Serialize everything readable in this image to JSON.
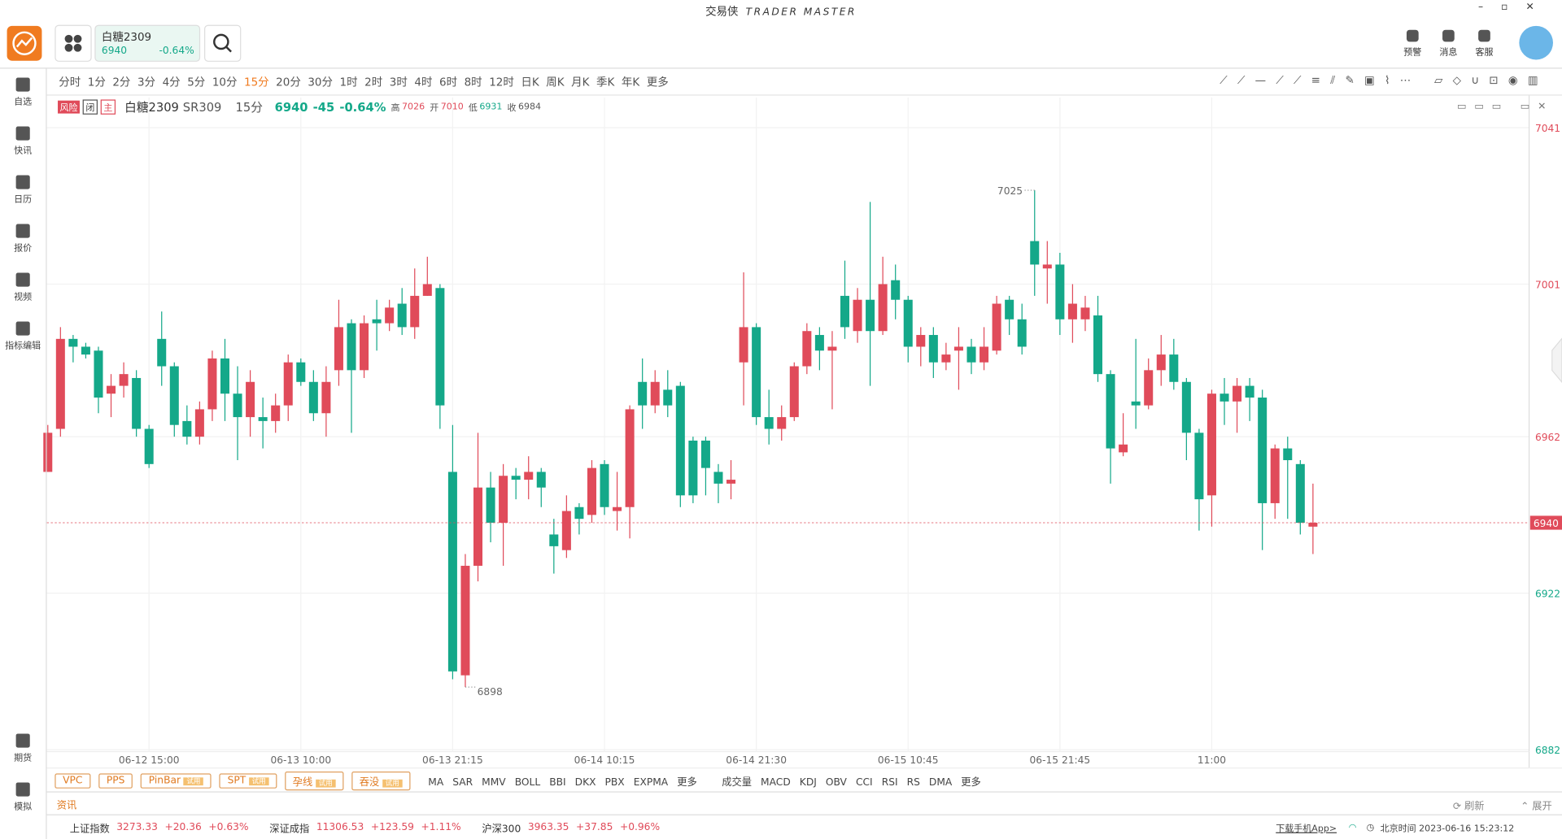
{
  "app": {
    "title": "交易侠",
    "subtitle": "TRADER MASTER"
  },
  "watch_card": {
    "name": "白糖2309",
    "price": "6940",
    "change": "-0.64%"
  },
  "top_icons": [
    "预警",
    "消息",
    "客服"
  ],
  "sidebar": [
    "自选",
    "快讯",
    "日历",
    "报价",
    "视频",
    "指标编辑"
  ],
  "sidebar_bottom": [
    "期货",
    "模拟"
  ],
  "periods": [
    "分时",
    "1分",
    "2分",
    "3分",
    "4分",
    "5分",
    "10分",
    "15分",
    "20分",
    "30分",
    "1时",
    "2时",
    "3时",
    "4时",
    "6时",
    "8时",
    "12时",
    "日K",
    "周K",
    "月K",
    "季K",
    "年K",
    "更多"
  ],
  "active_period": "15分",
  "quote": {
    "tags": [
      "风险",
      "闭",
      "主"
    ],
    "name": "白糖2309",
    "code": "SR309",
    "period": "15分",
    "last": "6940",
    "change": "-45",
    "pct": "-0.64%",
    "high_label": "高",
    "high": "7026",
    "open_label": "开",
    "open": "7010",
    "low_label": "低",
    "low": "6931",
    "close_label": "收",
    "close": "6984"
  },
  "chart_data": {
    "type": "candlestick",
    "categories": [
      null,
      null,
      null,
      null,
      null,
      null,
      null,
      null,
      "06-12 15:00",
      null,
      null,
      null,
      null,
      null,
      null,
      null,
      null,
      null,
      null,
      null,
      "06-13 10:00",
      null,
      null,
      null,
      null,
      null,
      null,
      null,
      null,
      null,
      null,
      null,
      "06-13 21:15",
      null,
      null,
      null,
      null,
      null,
      null,
      null,
      null,
      null,
      null,
      null,
      "06-14 10:15",
      null,
      null,
      null,
      null,
      null,
      null,
      null,
      null,
      null,
      null,
      null,
      "06-14 21:30",
      null,
      null,
      null,
      null,
      null,
      null,
      null,
      null,
      null,
      null,
      null,
      "06-15 10:45",
      null,
      null,
      null,
      null,
      null,
      null,
      null,
      null,
      null,
      null,
      null,
      "06-15 21:45",
      null,
      null,
      null,
      null,
      null,
      null,
      null,
      null,
      null,
      null,
      null,
      "11:00",
      null,
      null,
      null,
      null,
      null,
      null,
      null,
      null
    ],
    "candles": [
      {
        "o": 6953,
        "h": 6965,
        "l": 6953,
        "c": 6963
      },
      {
        "o": 6964,
        "h": 6990,
        "l": 6962,
        "c": 6987
      },
      {
        "o": 6987,
        "h": 6988,
        "l": 6981,
        "c": 6985
      },
      {
        "o": 6985,
        "h": 6986,
        "l": 6982,
        "c": 6983
      },
      {
        "o": 6984,
        "h": 6985,
        "l": 6968,
        "c": 6972
      },
      {
        "o": 6973,
        "h": 6978,
        "l": 6967,
        "c": 6975
      },
      {
        "o": 6975,
        "h": 6981,
        "l": 6972,
        "c": 6978
      },
      {
        "o": 6977,
        "h": 6979,
        "l": 6962,
        "c": 6964
      },
      {
        "o": 6964,
        "h": 6965,
        "l": 6954,
        "c": 6955
      },
      {
        "o": 6987,
        "h": 6994,
        "l": 6975,
        "c": 6980
      },
      {
        "o": 6980,
        "h": 6981,
        "l": 6962,
        "c": 6965
      },
      {
        "o": 6966,
        "h": 6970,
        "l": 6960,
        "c": 6962
      },
      {
        "o": 6962,
        "h": 6971,
        "l": 6960,
        "c": 6969
      },
      {
        "o": 6969,
        "h": 6984,
        "l": 6966,
        "c": 6982
      },
      {
        "o": 6982,
        "h": 6987,
        "l": 6966,
        "c": 6973
      },
      {
        "o": 6973,
        "h": 6980,
        "l": 6956,
        "c": 6967
      },
      {
        "o": 6967,
        "h": 6979,
        "l": 6962,
        "c": 6976
      },
      {
        "o": 6967,
        "h": 6972,
        "l": 6959,
        "c": 6966
      },
      {
        "o": 6966,
        "h": 6973,
        "l": 6963,
        "c": 6970
      },
      {
        "o": 6970,
        "h": 6983,
        "l": 6966,
        "c": 6981
      },
      {
        "o": 6981,
        "h": 6982,
        "l": 6975,
        "c": 6976
      },
      {
        "o": 6976,
        "h": 6979,
        "l": 6966,
        "c": 6968
      },
      {
        "o": 6968,
        "h": 6980,
        "l": 6962,
        "c": 6976
      },
      {
        "o": 6979,
        "h": 6997,
        "l": 6975,
        "c": 6990
      },
      {
        "o": 6991,
        "h": 6992,
        "l": 6963,
        "c": 6979
      },
      {
        "o": 6979,
        "h": 6993,
        "l": 6977,
        "c": 6991
      },
      {
        "o": 6992,
        "h": 6997,
        "l": 6984,
        "c": 6991
      },
      {
        "o": 6991,
        "h": 6997,
        "l": 6989,
        "c": 6995
      },
      {
        "o": 6996,
        "h": 7000,
        "l": 6988,
        "c": 6990
      },
      {
        "o": 6990,
        "h": 7005,
        "l": 6987,
        "c": 6998
      },
      {
        "o": 6998,
        "h": 7008,
        "l": 6998,
        "c": 7001
      },
      {
        "o": 7000,
        "h": 7001,
        "l": 6964,
        "c": 6970
      },
      {
        "o": 6953,
        "h": 6965,
        "l": 6900,
        "c": 6902
      },
      {
        "o": 6901,
        "h": 6932,
        "l": 6898,
        "c": 6929
      },
      {
        "o": 6929,
        "h": 6963,
        "l": 6925,
        "c": 6949
      },
      {
        "o": 6949,
        "h": 6953,
        "l": 6935,
        "c": 6940
      },
      {
        "o": 6940,
        "h": 6955,
        "l": 6929,
        "c": 6952
      },
      {
        "o": 6952,
        "h": 6954,
        "l": 6946,
        "c": 6951
      },
      {
        "o": 6951,
        "h": 6957,
        "l": 6946,
        "c": 6953
      },
      {
        "o": 6953,
        "h": 6954,
        "l": 6944,
        "c": 6949
      },
      {
        "o": 6937,
        "h": 6941,
        "l": 6927,
        "c": 6934
      },
      {
        "o": 6933,
        "h": 6947,
        "l": 6931,
        "c": 6943
      },
      {
        "o": 6944,
        "h": 6945,
        "l": 6937,
        "c": 6941
      },
      {
        "o": 6942,
        "h": 6956,
        "l": 6940,
        "c": 6954
      },
      {
        "o": 6955,
        "h": 6956,
        "l": 6942,
        "c": 6944
      },
      {
        "o": 6943,
        "h": 6953,
        "l": 6938,
        "c": 6944
      },
      {
        "o": 6944,
        "h": 6970,
        "l": 6936,
        "c": 6969
      },
      {
        "o": 6976,
        "h": 6982,
        "l": 6964,
        "c": 6970
      },
      {
        "o": 6970,
        "h": 6979,
        "l": 6968,
        "c": 6976
      },
      {
        "o": 6974,
        "h": 6979,
        "l": 6967,
        "c": 6970
      },
      {
        "o": 6975,
        "h": 6976,
        "l": 6944,
        "c": 6947
      },
      {
        "o": 6961,
        "h": 6962,
        "l": 6945,
        "c": 6947
      },
      {
        "o": 6961,
        "h": 6962,
        "l": 6947,
        "c": 6954
      },
      {
        "o": 6953,
        "h": 6955,
        "l": 6945,
        "c": 6950
      },
      {
        "o": 6950,
        "h": 6956,
        "l": 6946,
        "c": 6951
      },
      {
        "o": 6981,
        "h": 7004,
        "l": 6970,
        "c": 6990
      },
      {
        "o": 6990,
        "h": 6991,
        "l": 6965,
        "c": 6967
      },
      {
        "o": 6967,
        "h": 6974,
        "l": 6960,
        "c": 6964
      },
      {
        "o": 6964,
        "h": 6970,
        "l": 6961,
        "c": 6967
      },
      {
        "o": 6967,
        "h": 6981,
        "l": 6966,
        "c": 6980
      },
      {
        "o": 6980,
        "h": 6991,
        "l": 6978,
        "c": 6989
      },
      {
        "o": 6988,
        "h": 6990,
        "l": 6979,
        "c": 6984
      },
      {
        "o": 6984,
        "h": 6989,
        "l": 6969,
        "c": 6985
      },
      {
        "o": 6998,
        "h": 7007,
        "l": 6987,
        "c": 6990
      },
      {
        "o": 6989,
        "h": 7000,
        "l": 6986,
        "c": 6997
      },
      {
        "o": 6997,
        "h": 7022,
        "l": 6975,
        "c": 6989
      },
      {
        "o": 6989,
        "h": 7008,
        "l": 6988,
        "c": 7001
      },
      {
        "o": 7002,
        "h": 7006,
        "l": 6992,
        "c": 6997
      },
      {
        "o": 6997,
        "h": 6998,
        "l": 6981,
        "c": 6985
      },
      {
        "o": 6985,
        "h": 6990,
        "l": 6980,
        "c": 6988
      },
      {
        "o": 6988,
        "h": 6990,
        "l": 6977,
        "c": 6981
      },
      {
        "o": 6981,
        "h": 6986,
        "l": 6979,
        "c": 6983
      },
      {
        "o": 6984,
        "h": 6990,
        "l": 6974,
        "c": 6985
      },
      {
        "o": 6985,
        "h": 6987,
        "l": 6978,
        "c": 6981
      },
      {
        "o": 6981,
        "h": 6990,
        "l": 6979,
        "c": 6985
      },
      {
        "o": 6984,
        "h": 6998,
        "l": 6983,
        "c": 6996
      },
      {
        "o": 6997,
        "h": 6998,
        "l": 6988,
        "c": 6992
      },
      {
        "o": 6992,
        "h": 6996,
        "l": 6983,
        "c": 6985
      },
      {
        "o": 7012,
        "h": 7025,
        "l": 6998,
        "c": 7006
      },
      {
        "o": 7005,
        "h": 7012,
        "l": 6996,
        "c": 7006
      },
      {
        "o": 7006,
        "h": 7009,
        "l": 6988,
        "c": 6992
      },
      {
        "o": 6992,
        "h": 7001,
        "l": 6986,
        "c": 6996
      },
      {
        "o": 6992,
        "h": 6998,
        "l": 6989,
        "c": 6995
      },
      {
        "o": 6993,
        "h": 6998,
        "l": 6976,
        "c": 6978
      },
      {
        "o": 6978,
        "h": 6979,
        "l": 6950,
        "c": 6959
      },
      {
        "o": 6958,
        "h": 6968,
        "l": 6957,
        "c": 6960
      },
      {
        "o": 6971,
        "h": 6987,
        "l": 6964,
        "c": 6970
      },
      {
        "o": 6970,
        "h": 6982,
        "l": 6969,
        "c": 6979
      },
      {
        "o": 6979,
        "h": 6988,
        "l": 6975,
        "c": 6983
      },
      {
        "o": 6983,
        "h": 6987,
        "l": 6974,
        "c": 6976
      },
      {
        "o": 6976,
        "h": 6977,
        "l": 6956,
        "c": 6963
      },
      {
        "o": 6963,
        "h": 6964,
        "l": 6938,
        "c": 6946
      },
      {
        "o": 6947,
        "h": 6974,
        "l": 6939,
        "c": 6973
      },
      {
        "o": 6973,
        "h": 6977,
        "l": 6965,
        "c": 6971
      },
      {
        "o": 6971,
        "h": 6977,
        "l": 6963,
        "c": 6975
      },
      {
        "o": 6975,
        "h": 6977,
        "l": 6966,
        "c": 6972
      },
      {
        "o": 6972,
        "h": 6974,
        "l": 6933,
        "c": 6945
      },
      {
        "o": 6945,
        "h": 6960,
        "l": 6941,
        "c": 6959
      },
      {
        "o": 6959,
        "h": 6962,
        "l": 6941,
        "c": 6956
      },
      {
        "o": 6955,
        "h": 6956,
        "l": 6937,
        "c": 6940
      },
      {
        "o": 6939,
        "h": 6950,
        "l": 6932,
        "c": 6940
      }
    ],
    "up_color": "#e04b5a",
    "down_color": "#14a889",
    "ylim": [
      6881.5,
      7043.6
    ],
    "yticks": [
      7041,
      7001,
      6962,
      6922,
      6882
    ],
    "grid": true,
    "current": 6940,
    "max_label": "7025",
    "min_label": "6898"
  },
  "indicator_bar": {
    "strategies": [
      {
        "name": "VPC"
      },
      {
        "name": "PPS"
      },
      {
        "name": "PinBar",
        "tag": "试用"
      },
      {
        "name": "SPT",
        "tag": "试用"
      },
      {
        "name": "孕线",
        "tag": "试用"
      },
      {
        "name": "吞没",
        "tag": "试用"
      }
    ],
    "main": [
      "MA",
      "SAR",
      "MMV",
      "BOLL",
      "BBI",
      "DKX",
      "PBX",
      "EXPMA",
      "更多"
    ],
    "sub": [
      "成交量",
      "MACD",
      "KDJ",
      "OBV",
      "CCI",
      "RSI",
      "RS",
      "DMA",
      "更多"
    ]
  },
  "news": {
    "title": "资讯",
    "refresh": "刷新",
    "expand": "展开"
  },
  "footer": {
    "indices": [
      {
        "name": "上证指数",
        "value": "3273.33",
        "change": "+20.36",
        "pct": "+0.63%"
      },
      {
        "name": "深证成指",
        "value": "11306.53",
        "change": "+123.59",
        "pct": "+1.11%"
      },
      {
        "name": "沪深300",
        "value": "3963.35",
        "change": "+37.85",
        "pct": "+0.96%"
      }
    ],
    "download": "下载手机App>",
    "time": "北京时间 2023-06-16 15:23:12"
  }
}
